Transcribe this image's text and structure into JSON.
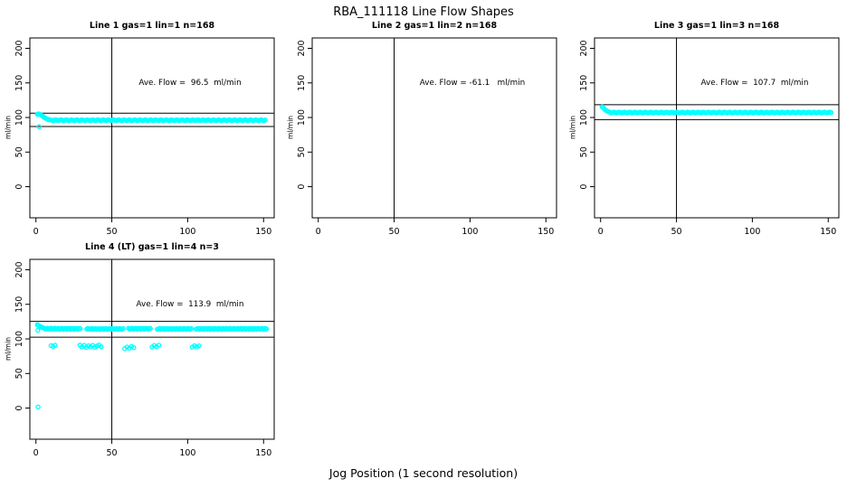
{
  "figure": {
    "title": "RBA_111118  Line Flow Shapes",
    "xlabel": "Jog Position (1 second resolution)",
    "point_color": "#00ffff",
    "line_color": "#000000",
    "background": "#ffffff"
  },
  "chart_data": [
    {
      "type": "scatter",
      "title": "Line 1 gas=1 lin=1 n=168",
      "ylabel": "ml/min",
      "annotation": "Ave. Flow =  96.5  ml/min",
      "ave_flow_ml_min": 96.5,
      "gas": 1,
      "lin": 1,
      "n": 168,
      "xticks": [
        0,
        50,
        100,
        150
      ],
      "yticks": [
        0,
        50,
        100,
        150,
        200
      ],
      "xlim": [
        -4,
        157
      ],
      "ylim": [
        -45,
        215
      ],
      "grid": false,
      "vline_x": 50,
      "hlines": [
        106.2,
        86.9
      ],
      "points": [
        [
          1,
          104.6
        ],
        [
          1.6,
          105.2
        ],
        [
          2.3,
          104.8
        ],
        [
          3,
          104.1
        ],
        [
          3.8,
          103.0
        ],
        [
          4.6,
          101.6
        ],
        [
          5.4,
          100.3
        ],
        [
          6.2,
          99.1
        ],
        [
          7.1,
          98.1
        ],
        [
          8,
          97.2
        ],
        [
          2.1,
          86.6
        ]
      ],
      "bands": [
        {
          "x_from": 9,
          "x_to": 152,
          "step": 0.9,
          "y_mean": 96.1,
          "y_jitter": 0.7
        }
      ]
    },
    {
      "type": "scatter",
      "title": "Line 2 gas=1 lin=2 n=168",
      "ylabel": "ml/min",
      "annotation": "Ave. Flow = -61.1   ml/min",
      "ave_flow_ml_min": -61.1,
      "gas": 1,
      "lin": 2,
      "n": 168,
      "xticks": [
        0,
        50,
        100,
        150
      ],
      "yticks": [
        0,
        50,
        100,
        150,
        200
      ],
      "xlim": [
        -4,
        157
      ],
      "ylim": [
        -45,
        215
      ],
      "grid": false,
      "vline_x": 50,
      "hlines": [],
      "points": [],
      "bands": []
    },
    {
      "type": "scatter",
      "title": "Line 3 gas=1 lin=3 n=168",
      "ylabel": "ml/min",
      "annotation": "Ave. Flow =  107.7  ml/min",
      "ave_flow_ml_min": 107.7,
      "gas": 1,
      "lin": 3,
      "n": 168,
      "xticks": [
        0,
        50,
        100,
        150
      ],
      "yticks": [
        0,
        50,
        100,
        150,
        200
      ],
      "xlim": [
        -4,
        157
      ],
      "ylim": [
        -45,
        215
      ],
      "grid": false,
      "vline_x": 50,
      "hlines": [
        118.5,
        96.9
      ],
      "points": [
        [
          1,
          115.4
        ],
        [
          1.5,
          114.3
        ],
        [
          2.1,
          113.1
        ],
        [
          2.8,
          111.6
        ],
        [
          3.6,
          110.2
        ],
        [
          4.4,
          109.2
        ],
        [
          5.2,
          108.4
        ],
        [
          6,
          107.9
        ]
      ],
      "bands": [
        {
          "x_from": 7,
          "x_to": 152.5,
          "step": 0.9,
          "y_mean": 107.2,
          "y_jitter": 0.6
        }
      ]
    },
    {
      "type": "scatter",
      "title": "Line 4 (LT) gas=1 lin=4 n=3",
      "ylabel": "ml/min",
      "annotation": "Ave. Flow =  113.9  ml/min",
      "ave_flow_ml_min": 113.9,
      "gas": 1,
      "lin": 4,
      "n": 3,
      "xticks": [
        0,
        50,
        100,
        150
      ],
      "yticks": [
        0,
        50,
        100,
        150,
        200
      ],
      "xlim": [
        -4,
        157
      ],
      "ylim": [
        -45,
        215
      ],
      "grid": false,
      "vline_x": 50,
      "hlines": [
        125.3,
        102.5
      ],
      "points": [
        [
          1,
          120.4
        ],
        [
          1.7,
          119.5
        ],
        [
          2.5,
          118.3
        ],
        [
          3.3,
          117.3
        ],
        [
          4.2,
          116.5
        ],
        [
          5.2,
          115.8
        ],
        [
          1.2,
          112.3
        ],
        [
          1.4,
          1.6
        ],
        [
          10,
          90.3
        ],
        [
          11.3,
          89.0
        ],
        [
          12.6,
          90.8
        ],
        [
          29,
          91.0
        ],
        [
          30.4,
          88.4
        ],
        [
          31.8,
          90.5
        ],
        [
          33.2,
          87.7
        ],
        [
          34.6,
          90.0
        ],
        [
          36,
          88.2
        ],
        [
          37.4,
          90.6
        ],
        [
          38.8,
          87.9
        ],
        [
          40.2,
          89.7
        ],
        [
          41.6,
          91.2
        ],
        [
          43,
          88.6
        ],
        [
          58.5,
          85.9
        ],
        [
          60,
          88.3
        ],
        [
          61.5,
          86.5
        ],
        [
          63,
          89.0
        ],
        [
          64.5,
          87.3
        ],
        [
          76.5,
          88.2
        ],
        [
          78,
          90.4
        ],
        [
          79.5,
          88.7
        ],
        [
          81,
          90.9
        ],
        [
          103,
          88.1
        ],
        [
          104.5,
          90.0
        ],
        [
          106,
          88.4
        ],
        [
          107.5,
          89.9
        ]
      ],
      "bands": [
        {
          "x_from": 6,
          "x_to": 29.5,
          "step": 0.8,
          "y_mean": 114.7,
          "y_jitter": 0.8
        },
        {
          "x_from": 33.5,
          "x_to": 58,
          "step": 0.8,
          "y_mean": 114.4,
          "y_jitter": 0.7
        },
        {
          "x_from": 61,
          "x_to": 76,
          "step": 0.8,
          "y_mean": 114.8,
          "y_jitter": 0.7
        },
        {
          "x_from": 80,
          "x_to": 102.5,
          "step": 0.8,
          "y_mean": 114.5,
          "y_jitter": 0.7
        },
        {
          "x_from": 105.5,
          "x_to": 152,
          "step": 0.8,
          "y_mean": 114.6,
          "y_jitter": 0.7
        }
      ]
    }
  ]
}
